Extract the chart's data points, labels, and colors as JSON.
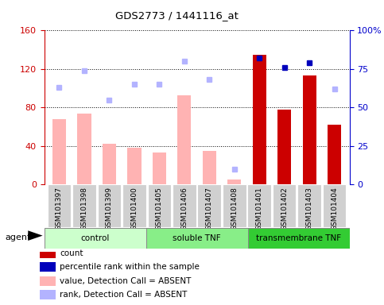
{
  "title": "GDS2773 / 1441116_at",
  "samples": [
    "GSM101397",
    "GSM101398",
    "GSM101399",
    "GSM101400",
    "GSM101405",
    "GSM101406",
    "GSM101407",
    "GSM101408",
    "GSM101401",
    "GSM101402",
    "GSM101403",
    "GSM101404"
  ],
  "groups": [
    {
      "name": "control",
      "start": 0,
      "end": 4,
      "color": "#ccffcc"
    },
    {
      "name": "soluble TNF",
      "start": 4,
      "end": 8,
      "color": "#88ee88"
    },
    {
      "name": "transmembrane TNF",
      "start": 8,
      "end": 12,
      "color": "#33cc33"
    }
  ],
  "absent_value": [
    68,
    74,
    42,
    38,
    33,
    93,
    35,
    5,
    null,
    null,
    null,
    null
  ],
  "absent_rank": [
    63,
    74,
    55,
    65,
    65,
    80,
    68,
    10,
    null,
    null,
    null,
    null
  ],
  "count_values": [
    null,
    null,
    null,
    null,
    null,
    null,
    null,
    null,
    135,
    78,
    113,
    62
  ],
  "pct_rank": [
    null,
    null,
    null,
    null,
    null,
    null,
    null,
    null,
    82,
    76,
    79,
    null
  ],
  "absent_rank2": [
    null,
    null,
    null,
    null,
    null,
    null,
    null,
    null,
    null,
    null,
    null,
    62
  ],
  "ylim_left": [
    0,
    160
  ],
  "ylim_right": [
    0,
    100
  ],
  "yticks_left": [
    0,
    40,
    80,
    120,
    160
  ],
  "yticks_right": [
    0,
    25,
    50,
    75,
    100
  ],
  "right_tick_labels": [
    "0",
    "25",
    "50",
    "75",
    "100%"
  ],
  "left_color": "#cc0000",
  "right_color": "#0000cc",
  "count_color": "#cc0000",
  "pct_color": "#0000bb",
  "absent_val_color": "#ffb3b3",
  "absent_rank_color": "#b3b3ff",
  "bar_width": 0.55,
  "legend": [
    {
      "label": "count",
      "color": "#cc0000"
    },
    {
      "label": "percentile rank within the sample",
      "color": "#0000bb"
    },
    {
      "label": "value, Detection Call = ABSENT",
      "color": "#ffb3b3"
    },
    {
      "label": "rank, Detection Call = ABSENT",
      "color": "#b3b3ff"
    }
  ]
}
